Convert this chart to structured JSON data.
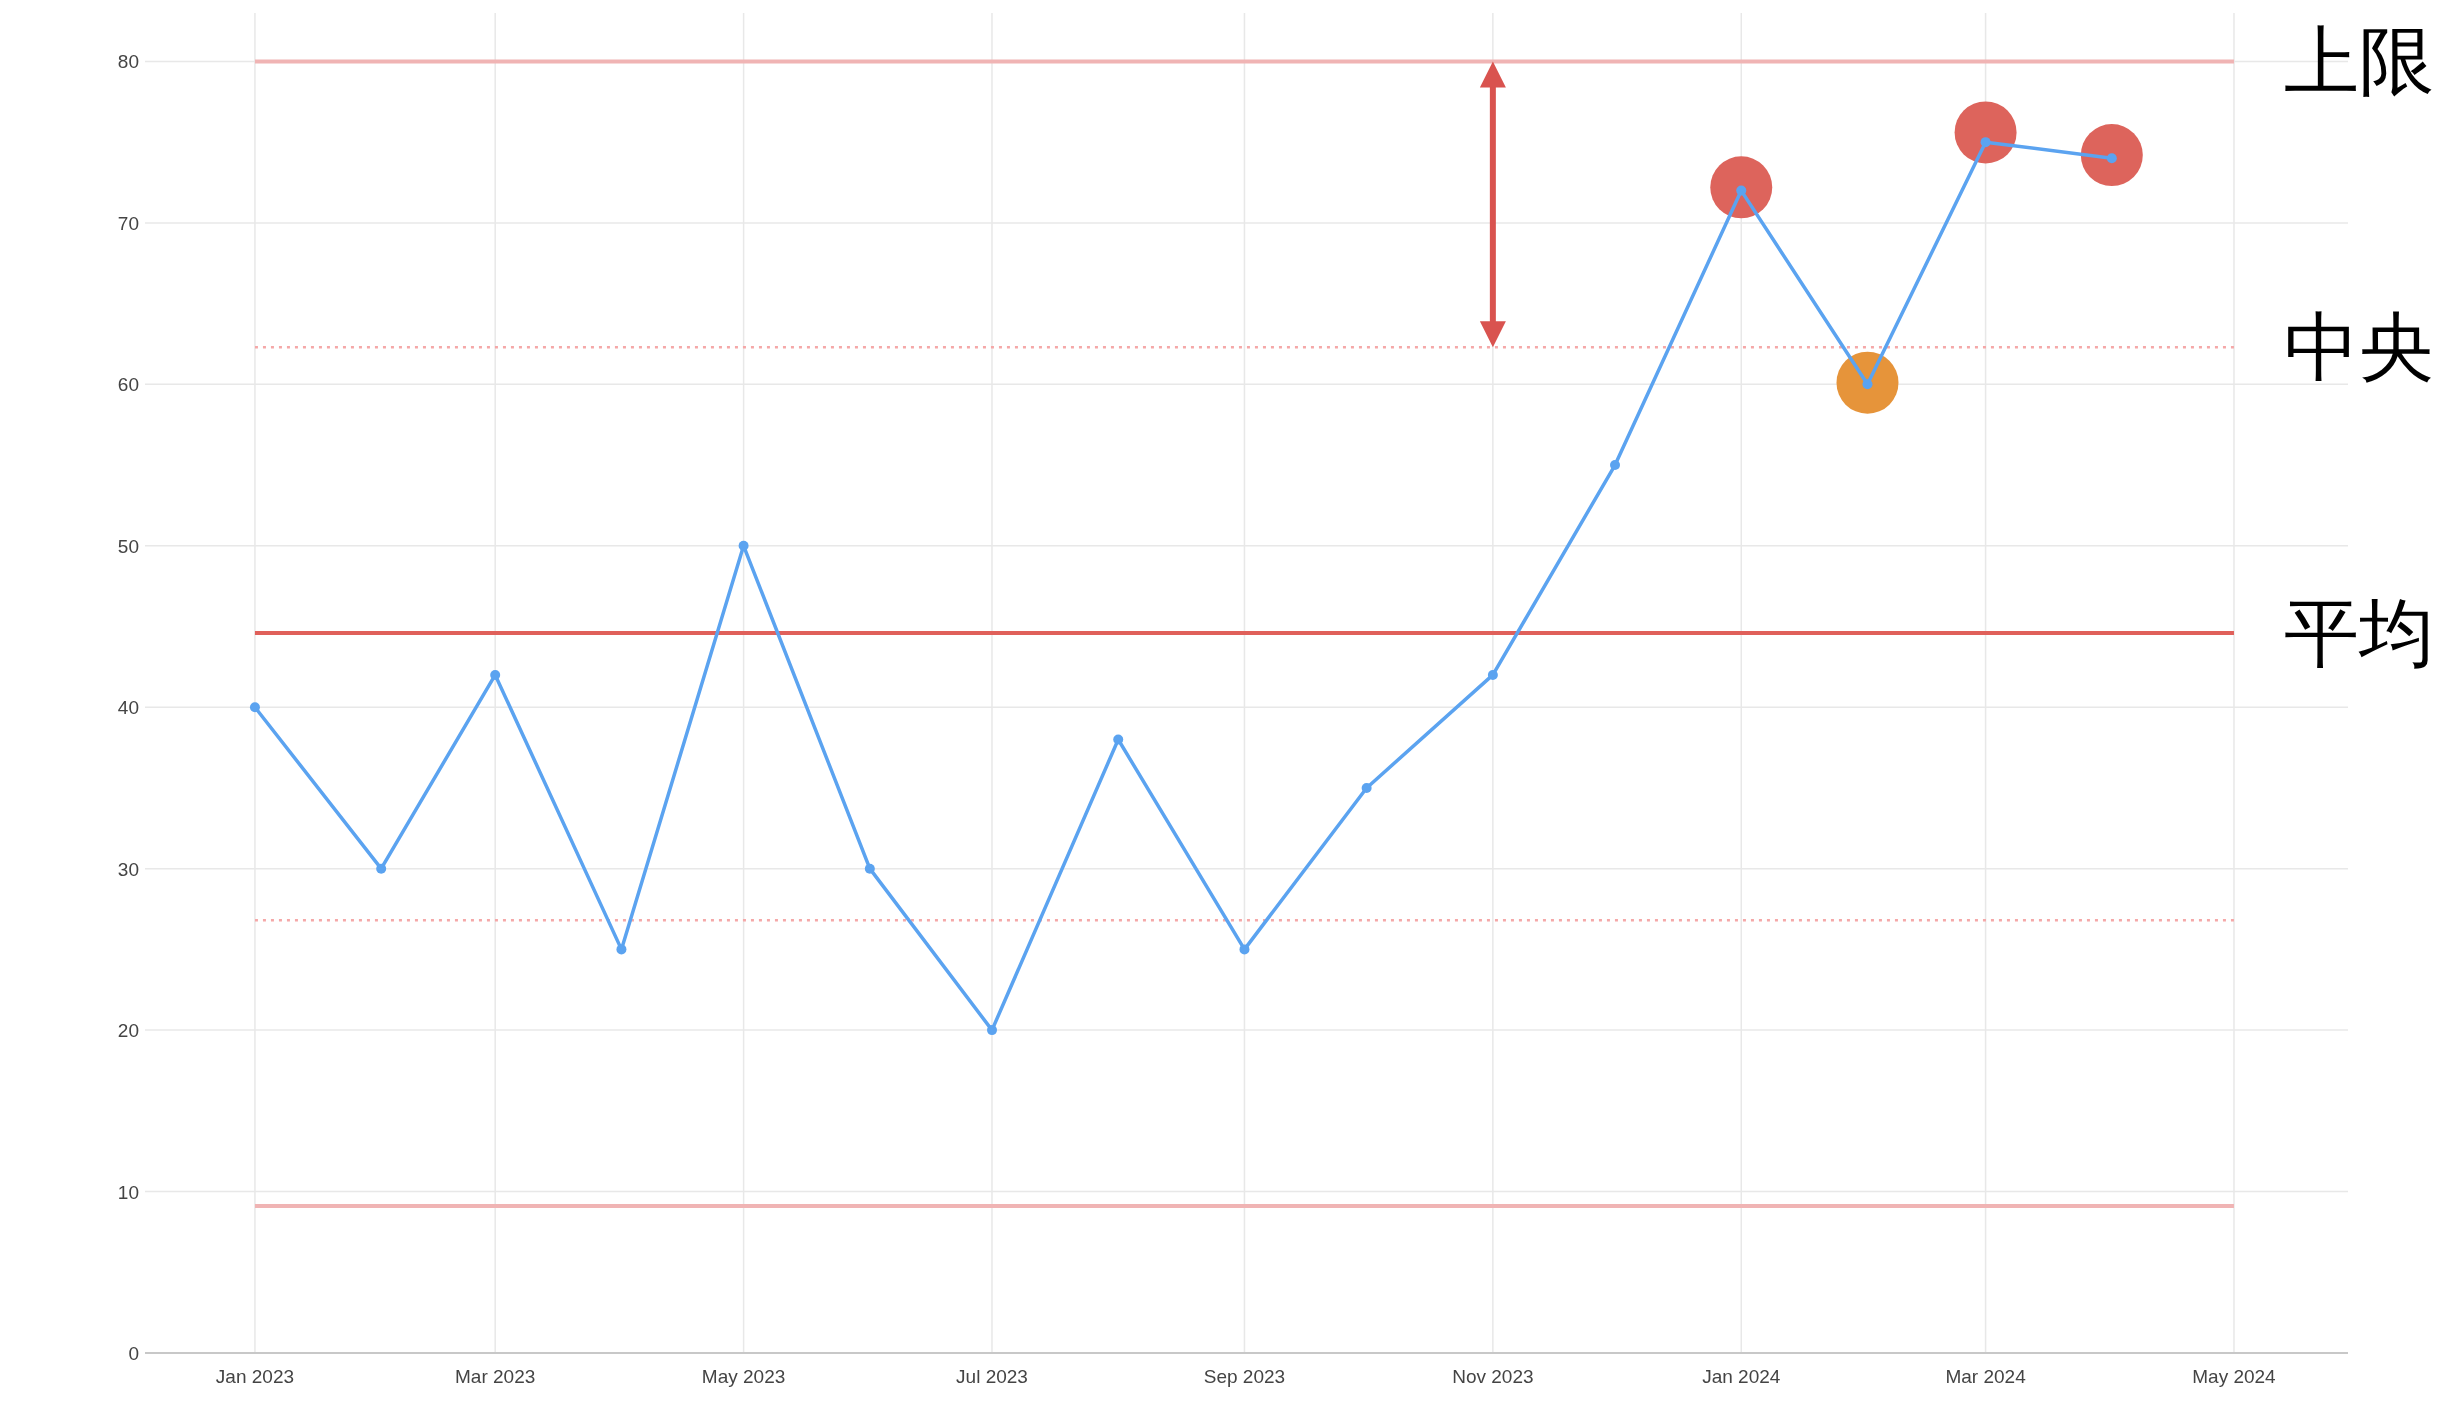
{
  "chart_data": {
    "type": "line",
    "x": [
      "2023-01",
      "2023-02",
      "2023-03",
      "2023-04",
      "2023-05",
      "2023-06",
      "2023-07",
      "2023-08",
      "2023-09",
      "2023-10",
      "2023-11",
      "2023-12",
      "2024-01",
      "2024-02",
      "2024-03",
      "2024-04"
    ],
    "series": [
      {
        "type": "scatter",
        "x": [
          "2024-01",
          "2024-02",
          "2024-03",
          "2024-04"
        ],
        "colors": [
          "#dd645c",
          "#e6943a",
          "#dd645c",
          "#dd645c"
        ],
        "values": [
          72.2,
          60.1,
          75.6,
          74.2
        ]
      },
      {
        "color": "#5ba3f0",
        "marker": "circle",
        "values": [
          40,
          30,
          42,
          25,
          50,
          30,
          20,
          38,
          25,
          35,
          42,
          55,
          72,
          60,
          75,
          74
        ]
      }
    ],
    "xlim": [
      "2022-12-05",
      "2024-05-29"
    ],
    "xticks": [
      {
        "value": "2023-01-01",
        "label": "Jan 2023"
      },
      {
        "value": "2023-03-01",
        "label": "Mar 2023"
      },
      {
        "value": "2023-05-01",
        "label": "May 2023"
      },
      {
        "value": "2023-07-01",
        "label": "Jul 2023"
      },
      {
        "value": "2023-09-01",
        "label": "Sep 2023"
      },
      {
        "value": "2023-11-01",
        "label": "Nov 2023"
      },
      {
        "value": "2024-01-01",
        "label": "Jan 2024"
      },
      {
        "value": "2024-03-01",
        "label": "Mar 2024"
      },
      {
        "value": "2024-05-01",
        "label": "May 2024"
      }
    ],
    "ylim": [
      0,
      83
    ],
    "yticks": [
      0,
      10,
      20,
      30,
      40,
      50,
      60,
      70,
      80
    ],
    "ref_lines": [
      {
        "axis": "y",
        "value": 80,
        "label": "上限",
        "color": "#f0b4b4",
        "line_style": "solid"
      },
      {
        "axis": "y",
        "value": 62.3,
        "label": "中央",
        "color": "#f5a8a8",
        "line_style": "dotted"
      },
      {
        "axis": "y",
        "value": 44.6,
        "label": "平均",
        "color": "#e0605a",
        "line_style": "solid"
      },
      {
        "axis": "y",
        "value": 26.8,
        "color": "#f5a8a8",
        "line_style": "dotted"
      },
      {
        "axis": "y",
        "value": 9.1,
        "color": "#f0b4b4",
        "line_style": "solid"
      }
    ],
    "grid": true
  }
}
